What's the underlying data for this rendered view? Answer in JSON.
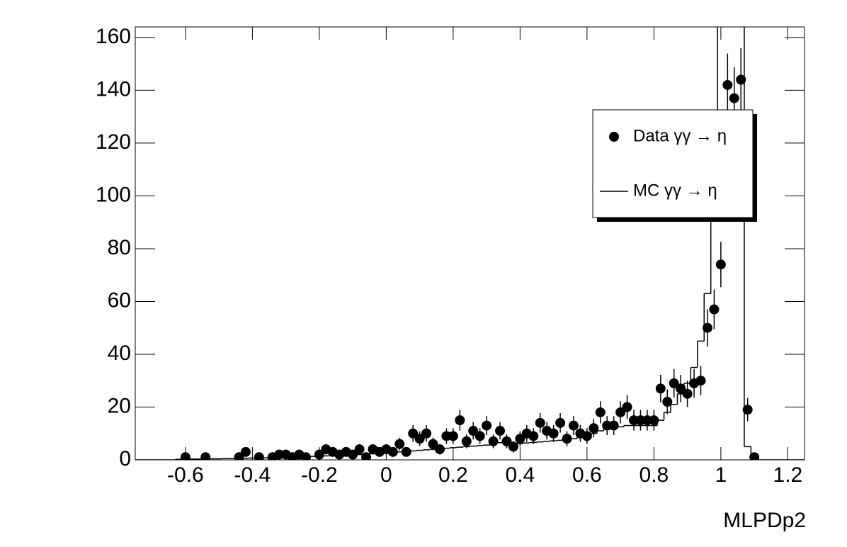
{
  "chart_data": {
    "type": "histogram",
    "xlabel": "MLPDp2",
    "xlim": [
      -0.75,
      1.25
    ],
    "ylim": [
      0,
      164
    ],
    "xticks": [
      -0.6,
      -0.4,
      -0.2,
      0,
      0.2,
      0.4,
      0.6,
      0.8,
      1,
      1.2
    ],
    "yticks": [
      0,
      20,
      40,
      60,
      80,
      100,
      120,
      140,
      160
    ],
    "series": [
      {
        "name": "Data γγ → η",
        "type": "points",
        "color": "#000000",
        "x": [
          -0.6,
          -0.54,
          -0.44,
          -0.42,
          -0.38,
          -0.34,
          -0.32,
          -0.3,
          -0.28,
          -0.26,
          -0.24,
          -0.2,
          -0.18,
          -0.16,
          -0.14,
          -0.12,
          -0.1,
          -0.08,
          -0.06,
          -0.04,
          -0.02,
          0,
          0.02,
          0.04,
          0.06,
          0.08,
          0.1,
          0.12,
          0.14,
          0.16,
          0.18,
          0.2,
          0.22,
          0.24,
          0.26,
          0.28,
          0.3,
          0.32,
          0.34,
          0.36,
          0.38,
          0.4,
          0.42,
          0.44,
          0.46,
          0.48,
          0.5,
          0.52,
          0.54,
          0.56,
          0.58,
          0.6,
          0.62,
          0.64,
          0.66,
          0.68,
          0.7,
          0.72,
          0.74,
          0.76,
          0.78,
          0.8,
          0.82,
          0.84,
          0.86,
          0.88,
          0.9,
          0.92,
          0.94,
          0.96,
          0.98,
          1,
          1.02,
          1.04,
          1.06,
          1.08,
          1.1
        ],
        "values": [
          1,
          1,
          1,
          3,
          1,
          1,
          2,
          2,
          1,
          2,
          1,
          2,
          4,
          3,
          2,
          3,
          2,
          4,
          1,
          4,
          3,
          4,
          3,
          6,
          3,
          10,
          8,
          10,
          6,
          4,
          9,
          9,
          15,
          7,
          11,
          9,
          13,
          7,
          11,
          7,
          5,
          8,
          10,
          9,
          14,
          11,
          10,
          14,
          8,
          13,
          10,
          9,
          12,
          18,
          13,
          13,
          18,
          20,
          15,
          15,
          15,
          15,
          27,
          22,
          29,
          27,
          25,
          29,
          30,
          50,
          57,
          74,
          142,
          137,
          144,
          19,
          1
        ],
        "errors": [
          1,
          1,
          1,
          1.7,
          1,
          1,
          1.4,
          1.4,
          1,
          1.4,
          1,
          1.4,
          2,
          1.7,
          1.4,
          1.7,
          1.4,
          2,
          1,
          2,
          1.7,
          2,
          1.7,
          2.4,
          1.7,
          3.2,
          2.8,
          3.2,
          2.4,
          2,
          3,
          3,
          3.9,
          2.6,
          3.3,
          3,
          3.6,
          2.6,
          3.3,
          2.6,
          2.2,
          2.8,
          3.2,
          3,
          3.7,
          3.3,
          3.2,
          3.7,
          2.8,
          3.6,
          3.2,
          3,
          3.5,
          4.2,
          3.6,
          3.6,
          4.2,
          4.5,
          3.9,
          3.9,
          3.9,
          3.9,
          5.2,
          4.7,
          5.4,
          5.2,
          5,
          5.4,
          5.5,
          7.1,
          7.5,
          8.6,
          11.9,
          11.7,
          12,
          4.4,
          1
        ]
      },
      {
        "name": "MC γγ → η",
        "type": "step",
        "color": "#000000",
        "bins": [
          -0.75,
          -0.73,
          -0.71,
          -0.69,
          -0.67,
          -0.65,
          -0.63,
          -0.61,
          -0.59,
          -0.57,
          -0.55,
          -0.53,
          -0.51,
          -0.49,
          -0.47,
          -0.45,
          -0.43,
          -0.41,
          -0.39,
          -0.37,
          -0.35,
          -0.33,
          -0.31,
          -0.29,
          -0.27,
          -0.25,
          -0.23,
          -0.21,
          -0.19,
          -0.17,
          -0.15,
          -0.13,
          -0.11,
          -0.09,
          -0.07,
          -0.05,
          -0.03,
          -0.01,
          0.01,
          0.03,
          0.05,
          0.07,
          0.09,
          0.11,
          0.13,
          0.15,
          0.17,
          0.19,
          0.21,
          0.23,
          0.25,
          0.27,
          0.29,
          0.31,
          0.33,
          0.35,
          0.37,
          0.39,
          0.41,
          0.43,
          0.45,
          0.47,
          0.49,
          0.51,
          0.53,
          0.55,
          0.57,
          0.59,
          0.61,
          0.63,
          0.65,
          0.67,
          0.69,
          0.71,
          0.73,
          0.75,
          0.77,
          0.79,
          0.81,
          0.83,
          0.85,
          0.87,
          0.89,
          0.91,
          0.93,
          0.95,
          0.97,
          0.99,
          1.01,
          1.03,
          1.05,
          1.07,
          1.09,
          1.11,
          1.13,
          1.15,
          1.17,
          1.19,
          1.21,
          1.23,
          1.25
        ],
        "values": [
          0,
          0,
          0,
          0,
          0,
          0,
          0.2,
          0.2,
          0.3,
          0.3,
          0.3,
          0.4,
          0.4,
          0.5,
          0.5,
          0.6,
          0.6,
          0.7,
          0.7,
          0.8,
          0.8,
          0.9,
          1,
          1,
          1.1,
          1.2,
          1.3,
          1.4,
          1.5,
          1.6,
          1.7,
          1.8,
          1.9,
          2,
          2.1,
          2.3,
          2.5,
          2.6,
          2.8,
          3,
          3.2,
          3.4,
          3.6,
          3.8,
          4,
          4.2,
          4.4,
          4.6,
          4.8,
          5,
          5.2,
          5.4,
          5.6,
          6,
          6.5,
          6,
          6,
          6.2,
          6.4,
          6.6,
          6.8,
          7,
          7.2,
          7.4,
          7.6,
          8,
          8.5,
          9,
          10,
          11,
          12,
          12,
          12.5,
          13,
          13,
          13,
          13,
          13,
          15,
          18,
          21,
          25,
          29,
          35,
          45,
          63,
          100,
          300,
          400,
          350,
          250,
          5,
          0,
          0,
          0,
          0,
          0,
          0,
          0,
          0
        ]
      }
    ]
  }
}
